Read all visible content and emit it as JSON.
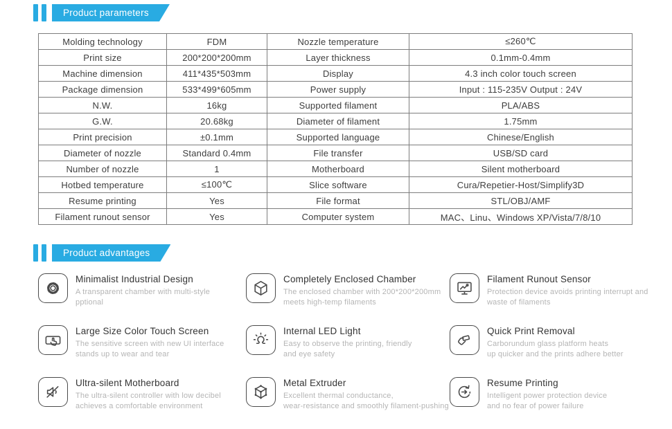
{
  "accent_color": "#29abe2",
  "headers": {
    "parameters": "Product parameters",
    "advantages": "Product advantages"
  },
  "spec_table": {
    "rows": [
      [
        "Molding technology",
        "FDM",
        "Nozzle temperature",
        "≤260℃"
      ],
      [
        "Print size",
        "200*200*200mm",
        "Layer thickness",
        "0.1mm-0.4mm"
      ],
      [
        "Machine dimension",
        "411*435*503mm",
        "Display",
        "4.3 inch color touch screen"
      ],
      [
        "Package dimension",
        "533*499*605mm",
        "Power supply",
        "Input : 115-235V Output : 24V"
      ],
      [
        "N.W.",
        "16kg",
        "Supported filament",
        "PLA/ABS"
      ],
      [
        "G.W.",
        "20.68kg",
        "Diameter of filament",
        "1.75mm"
      ],
      [
        "Print precision",
        "±0.1mm",
        "Supported language",
        "Chinese/English"
      ],
      [
        "Diameter of nozzle",
        "Standard 0.4mm",
        "File transfer",
        "USB/SD card"
      ],
      [
        "Number of nozzle",
        "1",
        "Motherboard",
        "Silent motherboard"
      ],
      [
        "Hotbed temperature",
        "≤100℃",
        "Slice software",
        "Cura/Repetier-Host/Simplify3D"
      ],
      [
        "Resume printing",
        "Yes",
        "File format",
        "STL/OBJ/AMF"
      ],
      [
        "Filament runout sensor",
        "Yes",
        "Computer system",
        "MAC、Linu、Windows XP/Vista/7/8/10"
      ]
    ]
  },
  "advantages": {
    "items": [
      {
        "icon": "gear-icon",
        "title": "Minimalist Industrial Design",
        "desc": "A transparent chamber with multi-style\npptional"
      },
      {
        "icon": "enclosed-chamber-icon",
        "title": "Completely Enclosed Chamber",
        "desc": "The enclosed chamber with 200*200*200mm\nmeets high-temp filaments"
      },
      {
        "icon": "filament-runout-sensor-icon",
        "title": "Filament Runout Sensor",
        "desc": "Protection device avoids printing interrupt and\nwaste of filaments"
      },
      {
        "icon": "touch-screen-icon",
        "title": "Large Size Color Touch Screen",
        "desc": "The sensitive screen with new UI interface\nstands up to wear and tear"
      },
      {
        "icon": "led-light-icon",
        "title": "Internal LED Light",
        "desc": "Easy to observe the printing, friendly\nand eye safety"
      },
      {
        "icon": "print-removal-icon",
        "title": "Quick Print Removal",
        "desc": "Carborundum glass platform heats\nup quicker and the prints adhere better"
      },
      {
        "icon": "mute-speaker-icon",
        "title": "Ultra-silent Motherboard",
        "desc": "The ultra-silent controller with low decibel\nachieves a comfortable environment"
      },
      {
        "icon": "metal-extruder-icon",
        "title": "Metal Extruder",
        "desc": "Excellent thermal conductance,\nwear-resistance and smoothly filament-pushing"
      },
      {
        "icon": "resume-printing-icon",
        "title": "Resume Printing",
        "desc": "Intelligent power protection device\nand no fear of power failure"
      }
    ]
  }
}
